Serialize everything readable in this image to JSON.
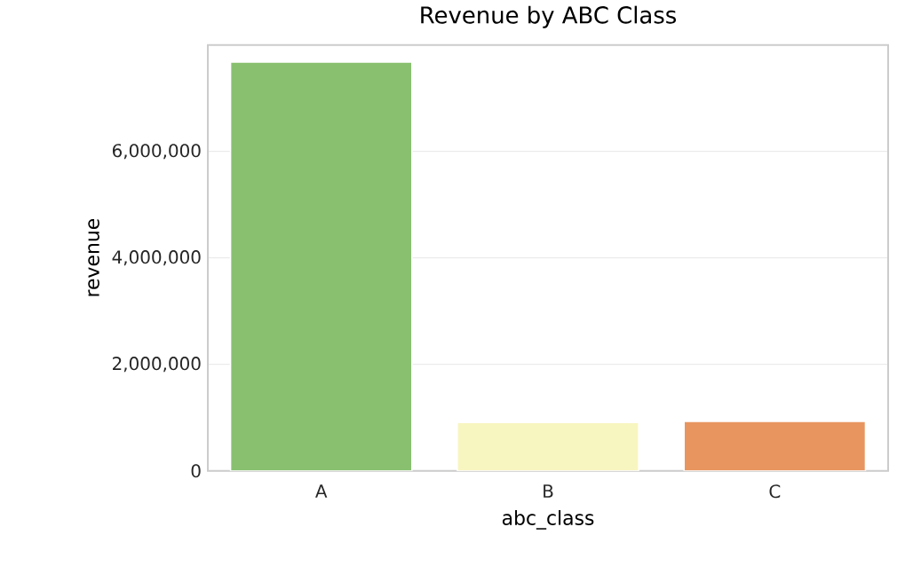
{
  "chart_data": {
    "type": "bar",
    "title": "Revenue by ABC Class",
    "xlabel": "abc_class",
    "ylabel": "revenue",
    "categories": [
      "A",
      "B",
      "C"
    ],
    "values": [
      7680000,
      910000,
      930000
    ],
    "colors": [
      "#88c070",
      "#f8f6c0",
      "#e8955f"
    ],
    "ylim": [
      0,
      8000000
    ],
    "yticks": [
      {
        "value": 0,
        "label": "0"
      },
      {
        "value": 2000000,
        "label": "2,000,000"
      },
      {
        "value": 4000000,
        "label": "4,000,000"
      },
      {
        "value": 6000000,
        "label": "6,000,000"
      }
    ],
    "grid": "y"
  }
}
